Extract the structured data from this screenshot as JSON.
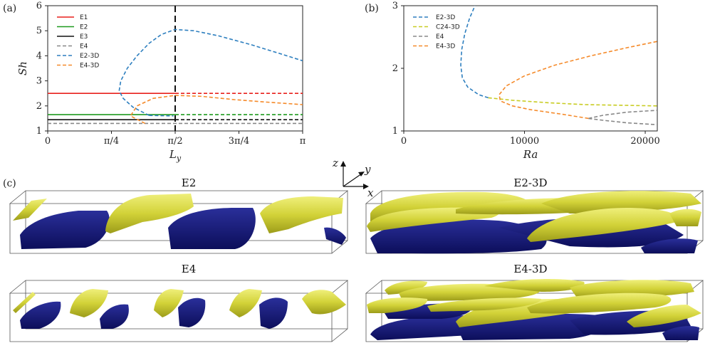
{
  "panels": {
    "a": "(a)",
    "b": "(b)",
    "c": "(c)"
  },
  "colors": {
    "E1": "#e8201c",
    "E2": "#1f9a1f",
    "E3": "#111111",
    "E4": "#888888",
    "E2-3D": "#2e7fbf",
    "E4-3D": "#f58a2a",
    "C24-3D": "#c8cc22",
    "iso_yellow": "#d4d33a",
    "iso_blue": "#14177a"
  },
  "chart_data": [
    {
      "id": "a",
      "type": "line",
      "xlabel": "L_y",
      "ylabel": "Sh",
      "xlim": [
        0,
        3.14159
      ],
      "ylim": [
        1,
        6
      ],
      "xticks": [
        {
          "v": 0,
          "label": "0"
        },
        {
          "v": 0.7854,
          "label": "π/4"
        },
        {
          "v": 1.5708,
          "label": "π/2"
        },
        {
          "v": 2.3562,
          "label": "3π/4"
        },
        {
          "v": 3.14159,
          "label": "π"
        }
      ],
      "yticks": [
        1,
        2,
        3,
        4,
        5,
        6
      ],
      "vline": 1.5708,
      "legend_position": "top-left",
      "series": [
        {
          "name": "E1",
          "style": "solid",
          "points": [
            [
              0,
              2.5
            ],
            [
              1.5708,
              2.5
            ]
          ]
        },
        {
          "name": "E1",
          "style": "dashed",
          "legend": false,
          "points": [
            [
              1.5708,
              2.5
            ],
            [
              3.14159,
              2.5
            ]
          ]
        },
        {
          "name": "E2",
          "style": "solid",
          "points": [
            [
              0,
              1.65
            ],
            [
              1.5708,
              1.65
            ]
          ]
        },
        {
          "name": "E2",
          "style": "dashed",
          "legend": false,
          "points": [
            [
              1.5708,
              1.65
            ],
            [
              3.14159,
              1.65
            ]
          ]
        },
        {
          "name": "E3",
          "style": "solid",
          "points": [
            [
              0,
              1.45
            ],
            [
              1.5708,
              1.45
            ]
          ]
        },
        {
          "name": "E3",
          "style": "dashed",
          "legend": false,
          "points": [
            [
              1.5708,
              1.45
            ],
            [
              3.14159,
              1.45
            ]
          ]
        },
        {
          "name": "E4",
          "style": "dashed",
          "points": [
            [
              0,
              1.3
            ],
            [
              3.14159,
              1.3
            ]
          ]
        },
        {
          "name": "E2-3D",
          "style": "dashed",
          "points": [
            [
              1.25,
              1.62
            ],
            [
              1.05,
              1.95
            ],
            [
              0.93,
              2.3
            ],
            [
              0.88,
              2.6
            ],
            [
              0.9,
              3.0
            ],
            [
              0.98,
              3.5
            ],
            [
              1.1,
              4.0
            ],
            [
              1.25,
              4.5
            ],
            [
              1.4,
              4.85
            ],
            [
              1.57,
              5.05
            ],
            [
              1.8,
              5.0
            ],
            [
              2.1,
              4.8
            ],
            [
              2.5,
              4.45
            ],
            [
              2.85,
              4.1
            ],
            [
              3.14159,
              3.8
            ]
          ]
        },
        {
          "name": "E2-3D",
          "style": "dashed",
          "legend": false,
          "points": [
            [
              1.25,
              1.62
            ],
            [
              1.55,
              1.6
            ]
          ]
        },
        {
          "name": "E4-3D",
          "style": "dashed",
          "points": [
            [
              1.2,
              1.3
            ],
            [
              1.02,
              1.6
            ],
            [
              1.1,
              2.0
            ],
            [
              1.3,
              2.3
            ],
            [
              1.57,
              2.42
            ],
            [
              1.9,
              2.38
            ],
            [
              2.3,
              2.25
            ],
            [
              2.7,
              2.15
            ],
            [
              3.14159,
              2.05
            ]
          ]
        }
      ]
    },
    {
      "id": "b",
      "type": "line",
      "xlabel": "Ra",
      "ylabel": "",
      "xlim": [
        0,
        21000
      ],
      "ylim": [
        1,
        3
      ],
      "xticks": [
        {
          "v": 0,
          "label": "0"
        },
        {
          "v": 10000,
          "label": "10000"
        },
        {
          "v": 20000,
          "label": "20000"
        }
      ],
      "yticks": [
        1,
        2,
        3
      ],
      "legend_position": "top-left",
      "series": [
        {
          "name": "E2-3D",
          "style": "dashed",
          "points": [
            [
              7000,
              1.53
            ],
            [
              6200,
              1.58
            ],
            [
              5300,
              1.7
            ],
            [
              4850,
              1.85
            ],
            [
              4720,
              2.05
            ],
            [
              4800,
              2.3
            ],
            [
              5050,
              2.55
            ],
            [
              5450,
              2.8
            ],
            [
              5900,
              3.0
            ]
          ]
        },
        {
          "name": "C24-3D",
          "style": "dashed",
          "points": [
            [
              7000,
              1.53
            ],
            [
              9000,
              1.49
            ],
            [
              12000,
              1.45
            ],
            [
              15000,
              1.42
            ],
            [
              18000,
              1.41
            ],
            [
              21000,
              1.4
            ]
          ]
        },
        {
          "name": "E4",
          "style": "dashed",
          "points": [
            [
              15300,
              1.2
            ],
            [
              16500,
              1.25
            ],
            [
              18500,
              1.3
            ],
            [
              21000,
              1.33
            ]
          ]
        },
        {
          "name": "E4",
          "style": "dashed",
          "legend": false,
          "points": [
            [
              15300,
              1.2
            ],
            [
              16500,
              1.17
            ],
            [
              18500,
              1.13
            ],
            [
              21000,
              1.1
            ]
          ]
        },
        {
          "name": "E4-3D",
          "style": "dashed",
          "points": [
            [
              15300,
              1.2
            ],
            [
              13000,
              1.27
            ],
            [
              10500,
              1.34
            ],
            [
              9000,
              1.4
            ],
            [
              8000,
              1.48
            ],
            [
              7900,
              1.58
            ],
            [
              8500,
              1.72
            ],
            [
              10000,
              1.88
            ],
            [
              12500,
              2.05
            ],
            [
              15500,
              2.2
            ],
            [
              18500,
              2.33
            ],
            [
              21000,
              2.43
            ]
          ]
        }
      ]
    }
  ],
  "axes3d": {
    "z": "z",
    "y": "y",
    "x": "x"
  },
  "render_titles": {
    "E2": "E2",
    "E2_3D": "E2-3D",
    "E4": "E4",
    "E4_3D": "E4-3D"
  }
}
